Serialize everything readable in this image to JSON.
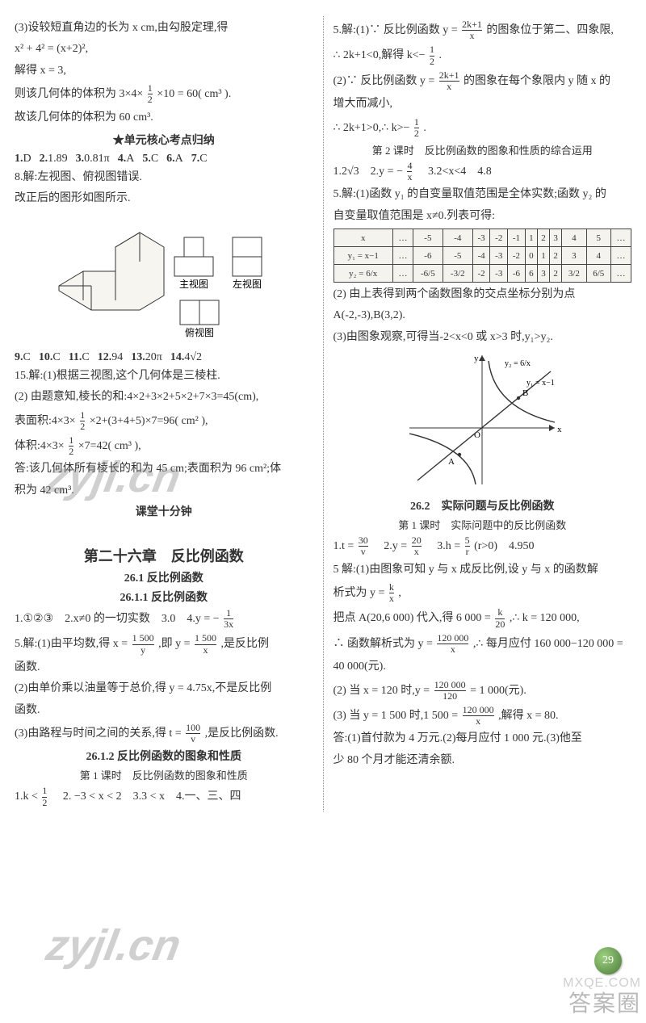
{
  "left": {
    "p1": "(3)设较短直角边的长为 x cm,由勾股定理,得",
    "p2": "x² + 4² = (x+2)²,",
    "p3": "解得 x = 3,",
    "p4a": "则该几何体的体积为 3×4×",
    "p4b": "×10 = 60( cm³ ).",
    "p5": "故该几何体的体积为 60 cm³.",
    "star_heading": "★单元核心考点归纳",
    "row1": [
      {
        "n": "1.",
        "v": "D"
      },
      {
        "n": "2.",
        "v": "1.89"
      },
      {
        "n": "3.",
        "v": "0.81π"
      },
      {
        "n": "4.",
        "v": "A"
      },
      {
        "n": "5.",
        "v": "C"
      },
      {
        "n": "6.",
        "v": "A"
      },
      {
        "n": "7.",
        "v": "C"
      }
    ],
    "p8": "8.解:左视图、俯视图错误.",
    "p8b": "改正后的图形如图所示.",
    "labels": {
      "main": "主视图",
      "left": "左视图",
      "top": "俯视图"
    },
    "row2": [
      {
        "n": "9.",
        "v": "C"
      },
      {
        "n": "10.",
        "v": "C"
      },
      {
        "n": "11.",
        "v": "C"
      },
      {
        "n": "12.",
        "v": "94"
      },
      {
        "n": "13.",
        "v": "20π"
      },
      {
        "n": "14.",
        "v": "4√2"
      }
    ],
    "p15": "15.解:(1)根据三视图,这个几何体是三棱柱.",
    "p15b": "(2) 由题意知,棱长的和:4×2+3×2+5×2+7×3=45(cm),",
    "p15c_a": "表面积:4×3×",
    "p15c_b": "×2+(3+4+5)×7=96( cm² ),",
    "p15d_a": "体积:4×3×",
    "p15d_b": "×7=42( cm³ ),",
    "p15e": "答:该几何体所有棱长的和为 45 cm;表面积为 96 cm²;体",
    "p15f": "积为 42 cm³.",
    "ketang": "课堂十分钟",
    "chapter": "第二十六章　反比例函数",
    "sec261": "26.1 反比例函数",
    "sec2611": "26.1.1 反比例函数",
    "row3_prefix": "1.①②③　2.x≠0 的一切实数　3.0　4.y = −",
    "row3_frac": {
      "num": "1",
      "den": "3x"
    },
    "p5avg_a": "5.解:(1)由平均数,得 x =",
    "p5avg_b": ",即 y =",
    "p5avg_c": ",是反比例",
    "p5avg_d": "函数.",
    "p5b": "(2)由单价乘以油量等于总价,得 y = 4.75x,不是反比例",
    "p5b2": "函数.",
    "p5c_a": "(3)由路程与时间之间的关系,得 t =",
    "p5c_b": ",是反比例函数.",
    "sec2612": "26.1.2 反比例函数的图象和性质",
    "lesson1": "第 1 课时　反比例函数的图象和性质",
    "row4_a": "1.k <",
    "row4_b": "　2. −3 < x < 2　3.3 < x　4.一、三、四",
    "frac_half": {
      "num": "1",
      "den": "2"
    },
    "frac_1500y": {
      "num": "1 500",
      "den": "y"
    },
    "frac_1500x": {
      "num": "1 500",
      "den": "x"
    },
    "frac_100v": {
      "num": "100",
      "den": "v"
    }
  },
  "right": {
    "p5_a": "5.解:(1)∵ 反比例函数 y =",
    "p5_b": "的图象位于第二、四象限,",
    "p5_c": "∴ 2k+1<0,解得 k<−",
    "p5_d": ".",
    "p5_e": "(2)∵ 反比例函数 y =",
    "p5_f": "的图象在每个象限内 y 随 x 的",
    "p5_g": "增大而减小,",
    "p5_h": "∴ 2k+1>0,∴ k>−",
    "p5_i": ".",
    "lesson2": "第 2 课时　反比例函数的图象和性质的综合运用",
    "row1_a": "1.2√3　2.y = −",
    "row1_b": "　3.2<x<4　4.8",
    "p5r": "5.解:(1)函数 y₁ 的自变量取值范围是全体实数;函数 y₂ 的",
    "p5r2": "自变量取值范围是 x≠0.列表可得:",
    "table": {
      "headers": [
        "x",
        "…",
        "-5",
        "-4",
        "-3",
        "-2",
        "-1",
        "1",
        "2",
        "3",
        "4",
        "5",
        "…"
      ],
      "row1_label": "y₁ = x−1",
      "row1": [
        "…",
        "-6",
        "-5",
        "-4",
        "-3",
        "-2",
        "0",
        "1",
        "2",
        "3",
        "4",
        "…"
      ],
      "row2_label": "y₂ = 6/x",
      "row2": [
        "…",
        "-6/5",
        "-3/2",
        "-2",
        "-3",
        "-6",
        "6",
        "3",
        "2",
        "3/2",
        "6/5",
        "…"
      ]
    },
    "p2": "(2) 由上表得到两个函数图象的交点坐标分别为点",
    "p2b": "A(-2,-3),B(3,2).",
    "p3": "(3)由图象观察,可得当-2<x<0 或 x>3 时,y₁>y₂.",
    "graph_labels": {
      "y": "y",
      "x": "x",
      "O": "O",
      "A": "A",
      "B": "B",
      "f1": "y₂ = 6/x",
      "f2": "y₁ = x−1"
    },
    "sec262": "26.2　实际问题与反比例函数",
    "lesson3": "第 1 课时　实际问题中的反比例函数",
    "row2_a": "1.t =",
    "row2_b": "　2.y =",
    "row2_c": "　3.h =",
    "row2_d": "(r>0)　4.950",
    "p5s_a": "5 解:(1)由图象可知 y 与 x 成反比例,设 y 与 x 的函数解",
    "p5s_b": "析式为 y =",
    "p5s_c": ",",
    "p5s2_a": "把点 A(20,6 000) 代入,得 6 000 =",
    "p5s2_b": ",∴ k = 120 000,",
    "p5s3_a": "∴ 函数解析式为 y =",
    "p5s3_b": ",∴ 每月应付 160 000−120 000 =",
    "p5s3_c": "40 000(元).",
    "p5s4_a": "(2) 当 x = 120 时,y =",
    "p5s4_b": "= 1 000(元).",
    "p5s5_a": "(3) 当 y = 1 500 时,1 500 =",
    "p5s5_b": ",解得 x = 80.",
    "p5s6": "答:(1)首付款为 4 万元.(2)每月应付 1 000 元.(3)他至",
    "p5s7": "少 80 个月才能还清余额.",
    "frac_2k1x": {
      "num": "2k+1",
      "den": "x"
    },
    "frac_12": {
      "num": "1",
      "den": "2"
    },
    "frac_4x": {
      "num": "4",
      "den": "x"
    },
    "frac_30v": {
      "num": "30",
      "den": "v"
    },
    "frac_20x": {
      "num": "20",
      "den": "x"
    },
    "frac_5r": {
      "num": "5",
      "den": "r"
    },
    "frac_kx": {
      "num": "k",
      "den": "x"
    },
    "frac_k20": {
      "num": "k",
      "den": "20"
    },
    "frac_120kx": {
      "num": "120 000",
      "den": "x"
    },
    "frac_120k120": {
      "num": "120 000",
      "den": "120"
    }
  },
  "misc": {
    "page_num": "29",
    "wm": "zyjl.cn",
    "corner1": "答案圈",
    "corner2": "MXQE.COM"
  }
}
